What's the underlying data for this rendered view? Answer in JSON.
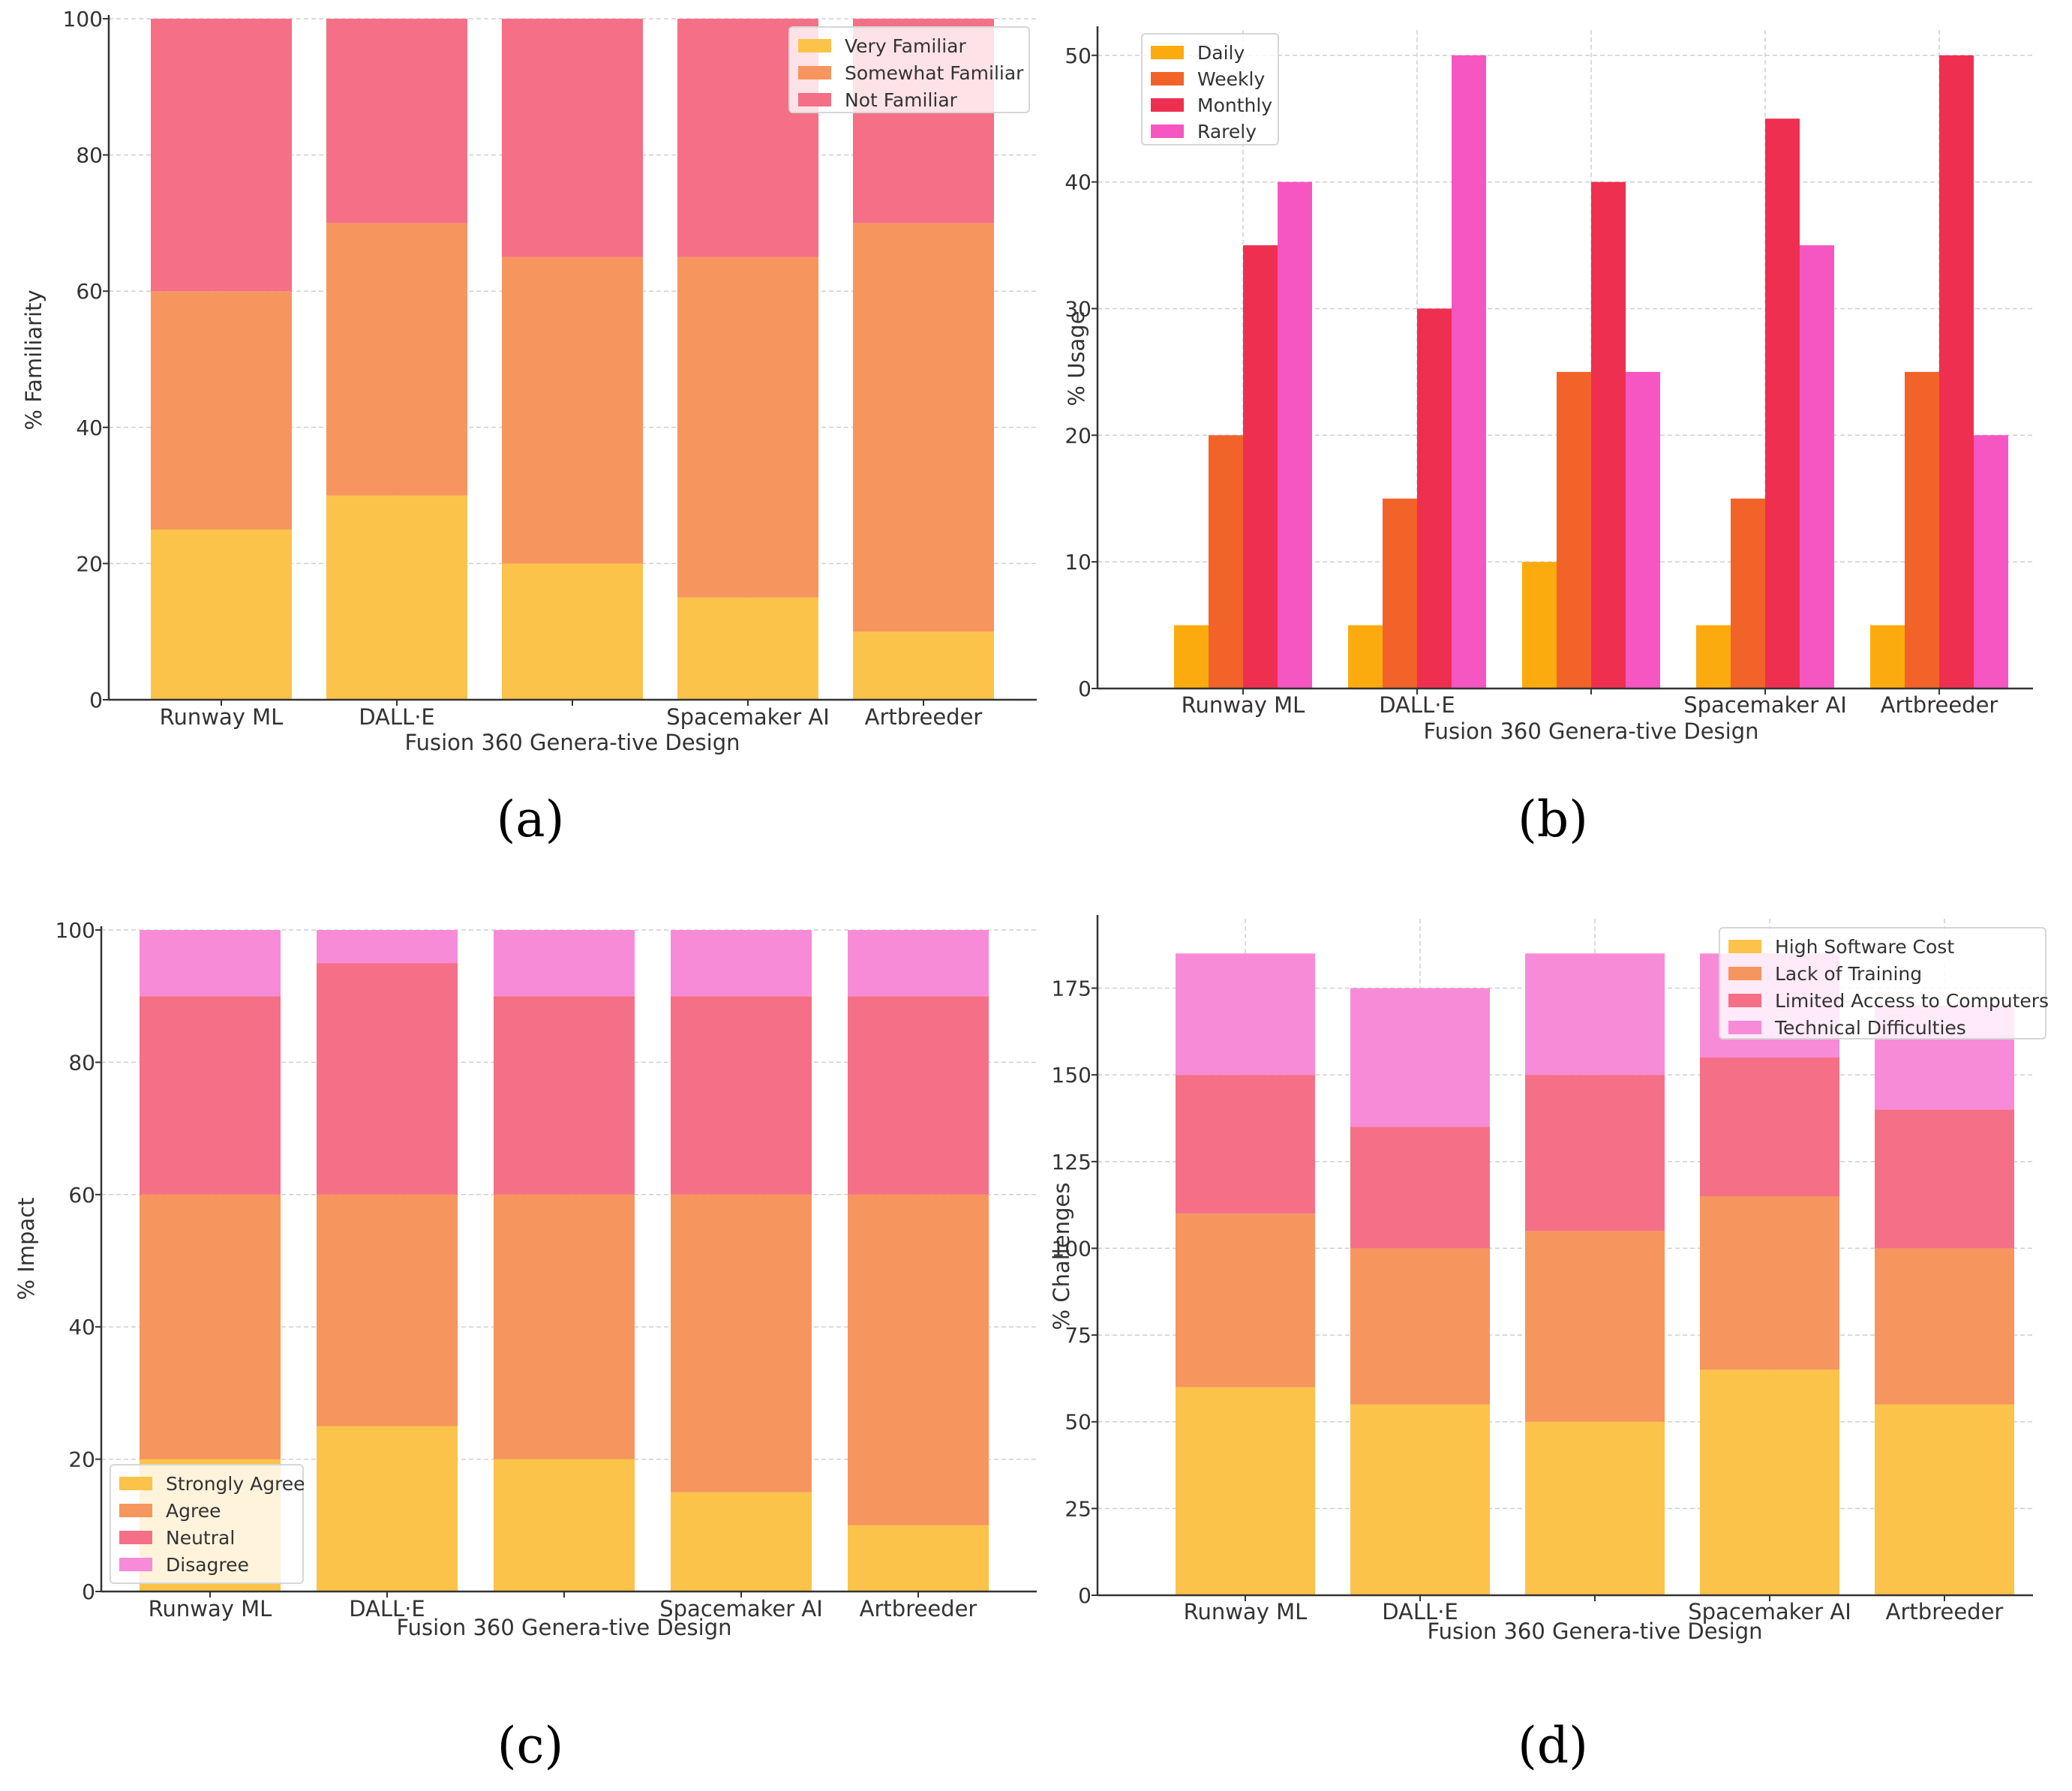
{
  "chart_data": [
    {
      "id": "a",
      "panel_label": "(a)",
      "type": "stacked-bar",
      "categories": [
        "Runway ML",
        "DALL·E",
        "Fusion 360 Genera-tive Design",
        "Spacemaker AI",
        "Artbreeder"
      ],
      "series": [
        {
          "name": "Very Familiar",
          "values": [
            25,
            30,
            20,
            15,
            10
          ],
          "color": "#fcc34a"
        },
        {
          "name": "Somewhat Familiar",
          "values": [
            35,
            40,
            45,
            50,
            60
          ],
          "color": "#f6955e"
        },
        {
          "name": "Not Familiar",
          "values": [
            40,
            30,
            35,
            35,
            30
          ],
          "color": "#f56f86"
        }
      ],
      "xlabel": "",
      "ylabel": "% Familiarity",
      "ylim": [
        0,
        100
      ],
      "yticks": [
        "0",
        "20",
        "40",
        "60",
        "80",
        "100"
      ],
      "grid": true,
      "legend_position": "top-right"
    },
    {
      "id": "b",
      "panel_label": "(b)",
      "type": "grouped-bar",
      "categories": [
        "Runway ML",
        "DALL·E",
        "Fusion 360 Genera-tive Design",
        "Spacemaker AI",
        "Artbreeder"
      ],
      "series": [
        {
          "name": "Daily",
          "values": [
            5,
            5,
            10,
            5,
            5
          ],
          "color": "#fcab0f"
        },
        {
          "name": "Weekly",
          "values": [
            20,
            15,
            25,
            15,
            25
          ],
          "color": "#f2632a"
        },
        {
          "name": "Monthly",
          "values": [
            35,
            30,
            40,
            45,
            50
          ],
          "color": "#ef2f50"
        },
        {
          "name": "Rarely",
          "values": [
            40,
            50,
            25,
            35,
            20
          ],
          "color": "#f556c2"
        }
      ],
      "xlabel": "",
      "ylabel": "% Usage",
      "ylim": [
        0,
        52
      ],
      "yticks": [
        "0",
        "10",
        "20",
        "30",
        "40",
        "50"
      ],
      "grid": true,
      "legend_position": "top-left"
    },
    {
      "id": "c",
      "panel_label": "(c)",
      "type": "stacked-bar",
      "categories": [
        "Runway ML",
        "DALL·E",
        "Fusion 360 Genera-tive Design",
        "Spacemaker AI",
        "Artbreeder"
      ],
      "series": [
        {
          "name": "Strongly Agree",
          "values": [
            20,
            25,
            20,
            15,
            10
          ],
          "color": "#fcc34a"
        },
        {
          "name": "Agree",
          "values": [
            40,
            35,
            40,
            45,
            50
          ],
          "color": "#f6955e"
        },
        {
          "name": "Neutral",
          "values": [
            30,
            35,
            30,
            30,
            30
          ],
          "color": "#f56f86"
        },
        {
          "name": "Disagree",
          "values": [
            10,
            5,
            10,
            10,
            10
          ],
          "color": "#f78bd8"
        }
      ],
      "xlabel": "",
      "ylabel": "% Impact",
      "ylim": [
        0,
        100
      ],
      "yticks": [
        "0",
        "20",
        "40",
        "60",
        "80",
        "100"
      ],
      "grid": true,
      "legend_position": "bottom-left"
    },
    {
      "id": "d",
      "panel_label": "(d)",
      "type": "stacked-bar",
      "categories": [
        "Runway ML",
        "DALL·E",
        "Fusion 360 Genera-tive Design",
        "Spacemaker AI",
        "Artbreeder"
      ],
      "series": [
        {
          "name": "High Software Cost",
          "values": [
            60,
            55,
            50,
            65,
            55
          ],
          "color": "#fcc34a"
        },
        {
          "name": "Lack of Training",
          "values": [
            50,
            45,
            55,
            50,
            45
          ],
          "color": "#f6955e"
        },
        {
          "name": "Limited Access to Computers",
          "values": [
            40,
            35,
            45,
            40,
            40
          ],
          "color": "#f56f86"
        },
        {
          "name": "Technical Difficulties",
          "values": [
            35,
            40,
            35,
            30,
            30
          ],
          "color": "#f78bd8"
        }
      ],
      "xlabel": "",
      "ylabel": "% Challenges",
      "ylim": [
        0,
        195
      ],
      "yticks": [
        "0",
        "25",
        "50",
        "75",
        "100",
        "125",
        "150",
        "175"
      ],
      "grid": true,
      "legend_position": "top-right"
    }
  ]
}
